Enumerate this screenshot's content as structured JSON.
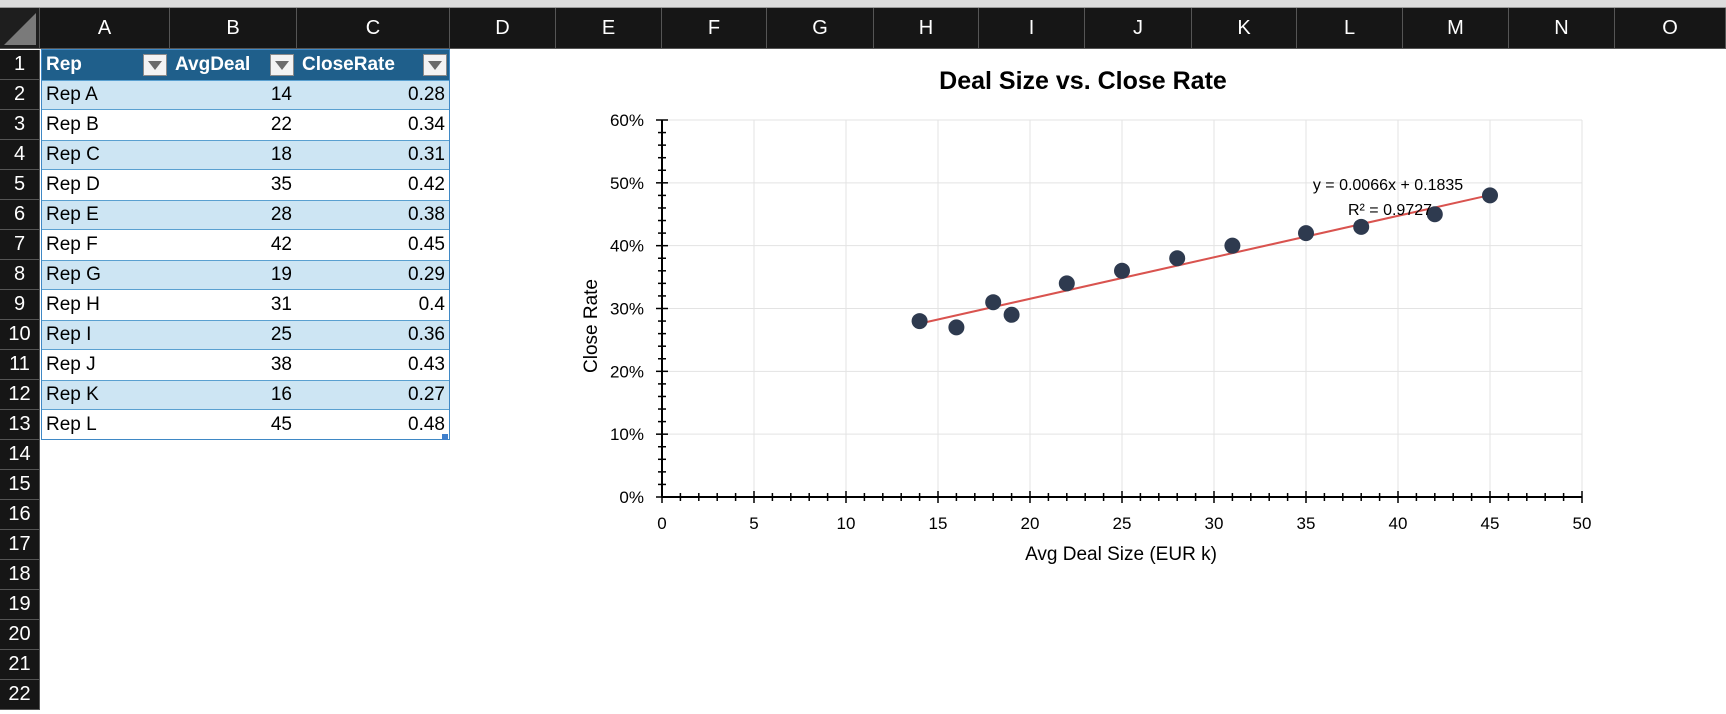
{
  "columns": [
    "A",
    "B",
    "C",
    "D",
    "E",
    "F",
    "G",
    "H",
    "I",
    "J",
    "K",
    "L",
    "M",
    "N",
    "O"
  ],
  "rows": [
    "1",
    "2",
    "3",
    "4",
    "5",
    "6",
    "7",
    "8",
    "9",
    "10",
    "11",
    "12",
    "13",
    "14",
    "15",
    "16",
    "17",
    "18",
    "19",
    "20",
    "21",
    "22"
  ],
  "table": {
    "headers": [
      "Rep",
      "AvgDeal",
      "CloseRate"
    ],
    "rows": [
      [
        "Rep A",
        "14",
        "0.28"
      ],
      [
        "Rep B",
        "22",
        "0.34"
      ],
      [
        "Rep C",
        "18",
        "0.31"
      ],
      [
        "Rep D",
        "35",
        "0.42"
      ],
      [
        "Rep E",
        "28",
        "0.38"
      ],
      [
        "Rep F",
        "42",
        "0.45"
      ],
      [
        "Rep G",
        "19",
        "0.29"
      ],
      [
        "Rep H",
        "31",
        "0.4"
      ],
      [
        "Rep I",
        "25",
        "0.36"
      ],
      [
        "Rep J",
        "38",
        "0.43"
      ],
      [
        "Rep K",
        "16",
        "0.27"
      ],
      [
        "Rep L",
        "45",
        "0.48"
      ]
    ]
  },
  "colors": {
    "header_bg": "#1f5f8b",
    "band_bg": "#cde5f3",
    "marker": "#2e3a4f",
    "trendline": "#d9534f"
  },
  "chart_data": {
    "type": "scatter",
    "title": "Deal Size vs. Close Rate",
    "xlabel": "Avg Deal Size (EUR k)",
    "ylabel": "Close Rate",
    "xlim": [
      0,
      50
    ],
    "ylim": [
      0,
      0.6
    ],
    "x_ticks": [
      "0",
      "5",
      "10",
      "15",
      "20",
      "25",
      "30",
      "35",
      "40",
      "45",
      "50"
    ],
    "y_ticks": [
      "0%",
      "10%",
      "20%",
      "30%",
      "40%",
      "50%",
      "60%"
    ],
    "grid": true,
    "points": [
      {
        "x": 14,
        "y": 0.28
      },
      {
        "x": 22,
        "y": 0.34
      },
      {
        "x": 18,
        "y": 0.31
      },
      {
        "x": 35,
        "y": 0.42
      },
      {
        "x": 28,
        "y": 0.38
      },
      {
        "x": 42,
        "y": 0.45
      },
      {
        "x": 19,
        "y": 0.29
      },
      {
        "x": 31,
        "y": 0.4
      },
      {
        "x": 25,
        "y": 0.36
      },
      {
        "x": 38,
        "y": 0.43
      },
      {
        "x": 16,
        "y": 0.27
      },
      {
        "x": 45,
        "y": 0.48
      }
    ],
    "trendline": {
      "slope": 0.0066,
      "intercept": 0.1835,
      "x_range": [
        14,
        45
      ]
    },
    "trend_equation": "y = 0.0066x + 0.1835",
    "trend_r2": "R² = 0.9727"
  }
}
